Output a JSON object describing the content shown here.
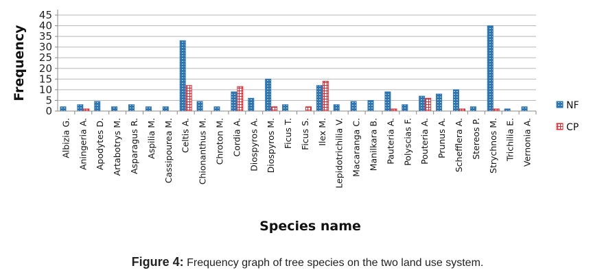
{
  "chart_data": {
    "type": "bar",
    "title": "",
    "xlabel": "Species name",
    "ylabel": "Frequency",
    "ylim": [
      0,
      45
    ],
    "yticks": [
      0,
      5,
      10,
      15,
      20,
      25,
      30,
      35,
      40,
      45
    ],
    "grid": true,
    "legend_position": "right",
    "categories": [
      "Albizia G.",
      "Aningeria A.",
      "Apodytes D.",
      "Artabotrys M.",
      "Asparagus R.",
      "Aspilia M.",
      "Cassipourea M.",
      "Celtis A.",
      "Chionanthus M.",
      "Chroton M.",
      "Cordia A.",
      "Diospyros A.",
      "Diospyros M.",
      "Ficus T.",
      "Ficus S.",
      "Ilex M.",
      "Lepidotrichilia V.",
      "Macaranga C.",
      "Manilkara B.",
      "Pauteria A.",
      "Polyscias F.",
      "Pouteria A.",
      "Prunus A.",
      "Schefflera A.",
      "Stereos P.",
      "Strychnos M.",
      "Trichilia E.",
      "Vernonia A."
    ],
    "series": [
      {
        "name": "NF",
        "color": "#2e75b6",
        "values": [
          2,
          3,
          4.5,
          2,
          3,
          2,
          2,
          33,
          4.5,
          2,
          9,
          6,
          15,
          3,
          0,
          12,
          3,
          4.5,
          5,
          9,
          3,
          7,
          8,
          10,
          2,
          40,
          1,
          2
        ]
      },
      {
        "name": "CP",
        "color": "#e8232b",
        "values": [
          0,
          1,
          0,
          0,
          0,
          0,
          0,
          12,
          0,
          0,
          11.5,
          0,
          2,
          0,
          2,
          14,
          0,
          0,
          0,
          1,
          0,
          6,
          0,
          1,
          0,
          1,
          0,
          0
        ]
      }
    ]
  },
  "caption": {
    "label": "Figure 4:",
    "text": " Frequency graph of tree species on the two land use system."
  }
}
